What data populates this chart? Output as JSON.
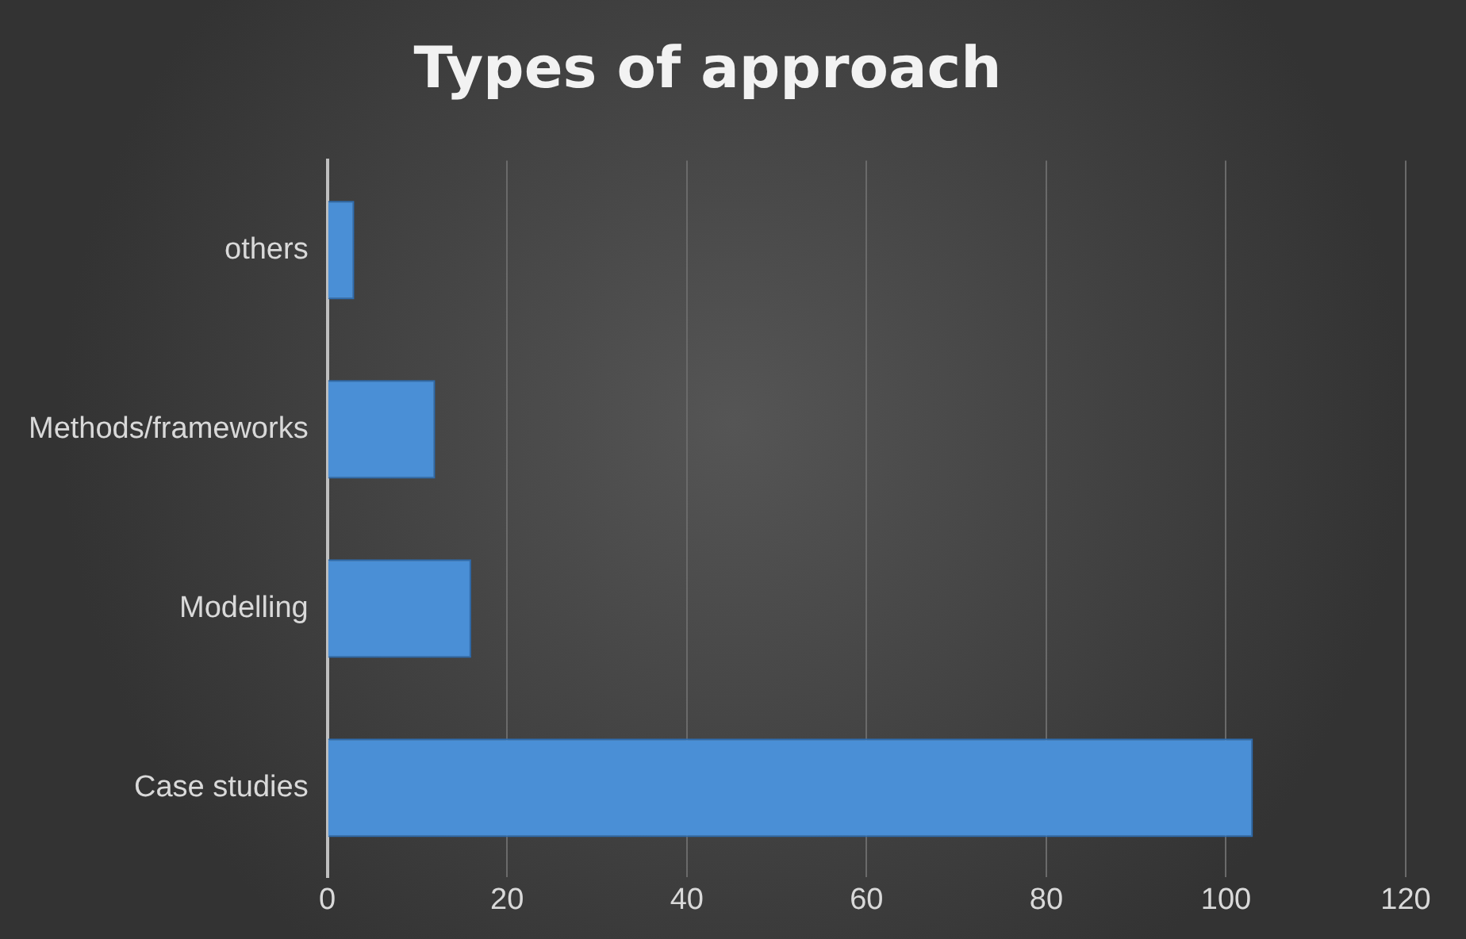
{
  "chart_data": {
    "type": "bar",
    "orientation": "horizontal",
    "title": "Types of approach",
    "categories": [
      "others",
      "Methods/frameworks",
      "Modelling",
      "Case studies"
    ],
    "values": [
      3,
      12,
      16,
      103
    ],
    "color": "#4a8fd6",
    "xlim": [
      0,
      120
    ],
    "xticks": [
      0,
      20,
      40,
      60,
      80,
      100,
      120
    ],
    "grid": "x"
  }
}
